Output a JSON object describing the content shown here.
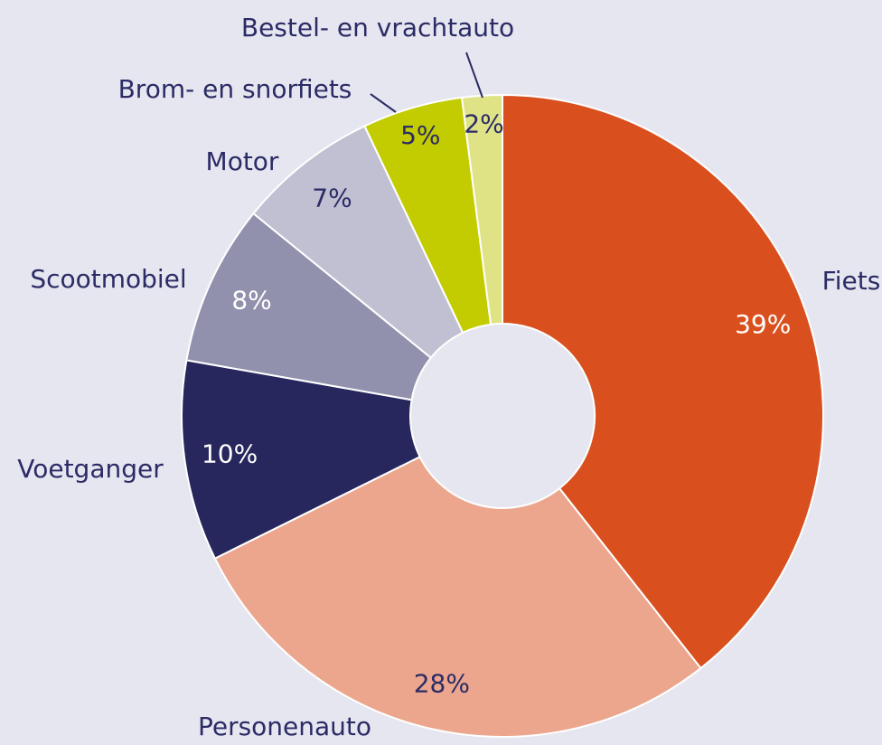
{
  "chart_data": {
    "type": "donut",
    "categories": [
      "Fiets",
      "Personenauto",
      "Voetganger",
      "Scootmobiel",
      "Motor",
      "Brom- en snorfiets",
      "Bestel- en vrachtauto"
    ],
    "values": [
      39,
      28,
      10,
      8,
      7,
      5,
      2
    ],
    "value_labels": [
      "39%",
      "28%",
      "10%",
      "8%",
      "7%",
      "5%",
      "2%"
    ],
    "colors": [
      "#d9501e",
      "#eba68d",
      "#27275e",
      "#9191ad",
      "#c0c0d2",
      "#c3cc00",
      "#dfe386"
    ]
  }
}
